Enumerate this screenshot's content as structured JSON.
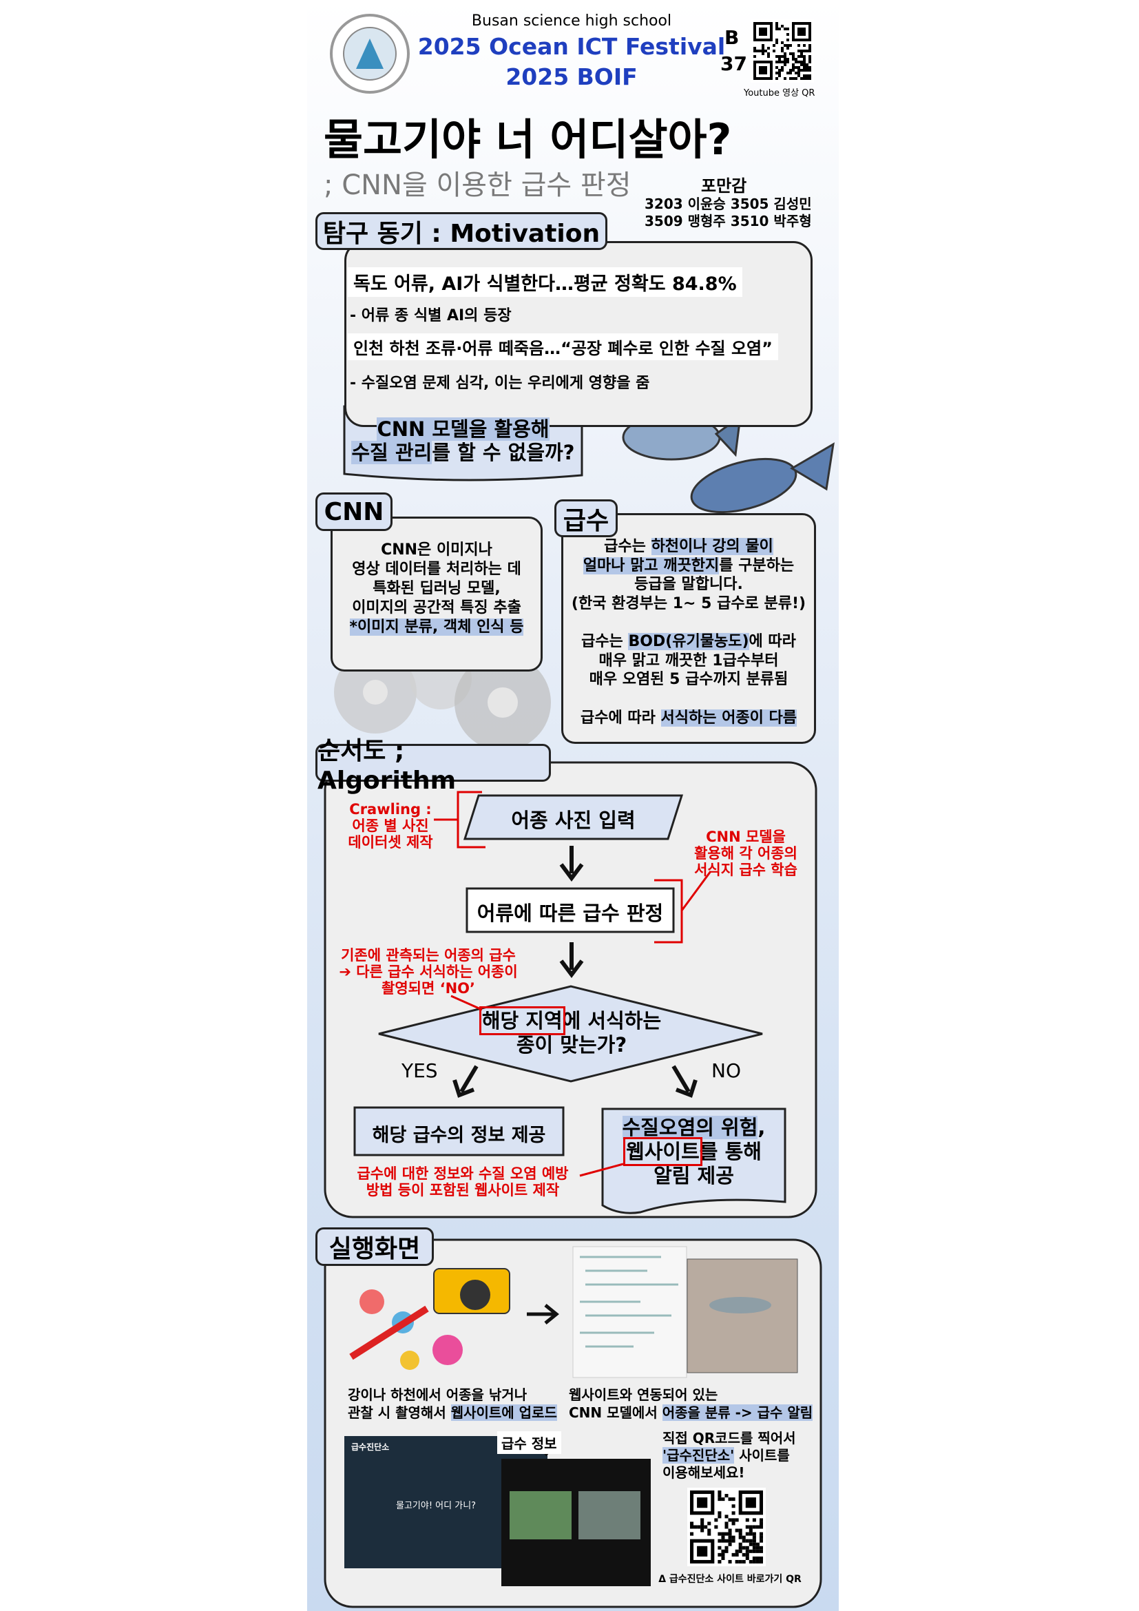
{
  "header": {
    "school": "Busan science high school",
    "festival": "2025 Ocean ICT Festival",
    "event": "2025 BOIF",
    "booth_letter": "B",
    "booth_number": "37",
    "qr_caption": "Youtube 영상 QR"
  },
  "title": {
    "main": "물고기야 너 어디살아?",
    "sub": "; CNN을 이용한 급수 판정"
  },
  "team": {
    "name": "포만감",
    "members": [
      "3203  이윤승 3505 김성민",
      "3509  맹형주 3510  박주형"
    ]
  },
  "motivation": {
    "heading": "탐구 동기 : Motivation",
    "news": [
      {
        "headline": "독도 어류, AI가 식별한다…평균 정확도 84.8%",
        "comment": "- 어류 종 식별 AI의 등장"
      },
      {
        "headline": "인천 하천 조류·어류 떼죽음…“공장 폐수로 인한 수질 오염”",
        "comment": "- 수질오염 문제 심각, 이는 우리에게 영향을 줌"
      }
    ],
    "question": [
      [
        [
          {
            "text": "CNN 모델을 활용해",
            "mark": "blue"
          }
        ],
        [
          {
            "text": "수질 관리",
            "mark": "blue"
          },
          "를 할 수 없을까?"
        ]
      ]
    ]
  },
  "cnn": {
    "heading": "CNN",
    "text": [
      [
        "CNN은 이미지나",
        "영상 데이터를 처리하는 데",
        "특화된 딥러닝 모델,",
        "이미지의 공간적 특징 추출",
        [
          {
            "text": "*이미지 분류, 객체 인식 등",
            "mark": "blue"
          }
        ]
      ]
    ]
  },
  "grade": {
    "heading": "급수",
    "text": [
      [
        [
          "급수는 ",
          {
            "text": "하천이나 강의 물이",
            "mark": "blue"
          }
        ],
        [
          {
            "text": "얼마나 맑고 깨끗한지",
            "mark": "blue"
          },
          "를 구분하는"
        ],
        "등급을 말합니다.",
        "(한국 환경부는 1~ 5 급수로 분류!)"
      ],
      [
        [
          "급수는 ",
          {
            "text": "BOD(유기물농도)",
            "mark": "blue"
          },
          "에 따라"
        ],
        "매우 맑고 깨끗한 1급수부터",
        "매우 오염된  5 급수까지 분류됨"
      ],
      [
        [
          "급수에 따라 ",
          {
            "text": "서식하는 어종이 다름",
            "mark": "blue"
          }
        ]
      ]
    ]
  },
  "algorithm": {
    "heading": "순서도 ; Algorithm",
    "input": "어종 사진 입력",
    "judge": "어류에 따른 급수 판정",
    "decision": [
      [
        [
          {
            "text": "해당 지역",
            "mark": "red"
          },
          "에 서식하는"
        ],
        "종이 맞는가?"
      ]
    ],
    "yes": "YES",
    "no": "NO",
    "yes_result": "해당 급수의 정보 제공",
    "no_result": [
      [
        [
          {
            "text": "수질오염의 위험",
            "mark": "blue"
          },
          ","
        ],
        [
          {
            "text": "웹사이트",
            "mark": "red"
          },
          "를 통해"
        ],
        "알림 제공"
      ]
    ],
    "note_crawling": [
      [
        "Crawling :",
        "어종 별 사진",
        "데이터셋 제작"
      ]
    ],
    "note_cnn": [
      [
        "CNN 모델을",
        "활용해 각 어종의",
        "서식지 급수 학습"
      ]
    ],
    "note_no": [
      [
        "기존에 관측되는 어종의 급수",
        "➔ 다른 급수 서식하는 어종이",
        "촬영되면 ‘NO’"
      ]
    ],
    "note_site": [
      [
        "급수에 대한 정보와 수질 오염 예방",
        "방법 등이 포함된 웹사이트 제작"
      ]
    ]
  },
  "demo": {
    "heading": "실행화면",
    "upload": [
      [
        "강이나 하천에서 어종을 낚거나",
        [
          "관찰 시 촬영해서 ",
          {
            "text": "웹사이트에 업로드",
            "mark": "blue"
          }
        ]
      ]
    ],
    "classify": [
      [
        "웹사이트와 연동되어 있는",
        [
          "CNN 모델에서 ",
          {
            "text": "어종을 분류 -> 급수 알림",
            "mark": "blue"
          }
        ]
      ]
    ],
    "try": [
      [
        "직접 QR코드를 찍어서",
        [
          {
            "text": "'급수진단소'",
            "mark": "blue"
          },
          " 사이트를"
        ],
        "이용해보세요!"
      ]
    ],
    "site_brand": "급수진단소",
    "site_hero": "물고기야! 어디 가니?",
    "info_label": "급수 정보",
    "qr_caption": "Δ 급수진단소 사이트 바로가기 QR"
  }
}
